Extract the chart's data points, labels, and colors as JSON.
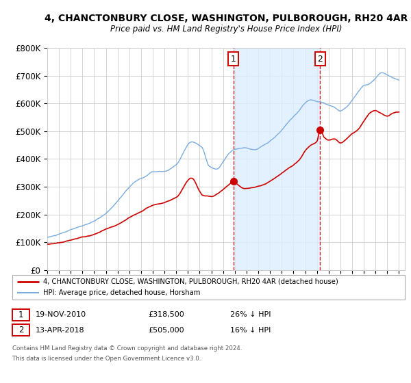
{
  "title": "4, CHANCTONBURY CLOSE, WASHINGTON, PULBOROUGH, RH20 4AR",
  "subtitle": "Price paid vs. HM Land Registry's House Price Index (HPI)",
  "ylim": [
    0,
    800000
  ],
  "yticks": [
    0,
    100000,
    200000,
    300000,
    400000,
    500000,
    600000,
    700000,
    800000
  ],
  "ytick_labels": [
    "£0",
    "£100K",
    "£200K",
    "£300K",
    "£400K",
    "£500K",
    "£600K",
    "£700K",
    "£800K"
  ],
  "xlim_start": 1995.0,
  "xlim_end": 2025.5,
  "hpi_color": "#7aace0",
  "price_color": "#cc0000",
  "hpi_fill_color": "#ddeeff",
  "background_color": "#ffffff",
  "grid_color": "#cccccc",
  "sale1_x": 2010.88,
  "sale1_y": 318500,
  "sale2_x": 2018.28,
  "sale2_y": 505000,
  "sale1_label": "1",
  "sale2_label": "2",
  "sale1_date": "19-NOV-2010",
  "sale1_price": "£318,500",
  "sale1_hpi": "26% ↓ HPI",
  "sale2_date": "13-APR-2018",
  "sale2_price": "£505,000",
  "sale2_hpi": "16% ↓ HPI",
  "legend_house": "4, CHANCTONBURY CLOSE, WASHINGTON, PULBOROUGH, RH20 4AR (detached house)",
  "legend_hpi": "HPI: Average price, detached house, Horsham",
  "footnote1": "Contains HM Land Registry data © Crown copyright and database right 2024.",
  "footnote2": "This data is licensed under the Open Government Licence v3.0."
}
